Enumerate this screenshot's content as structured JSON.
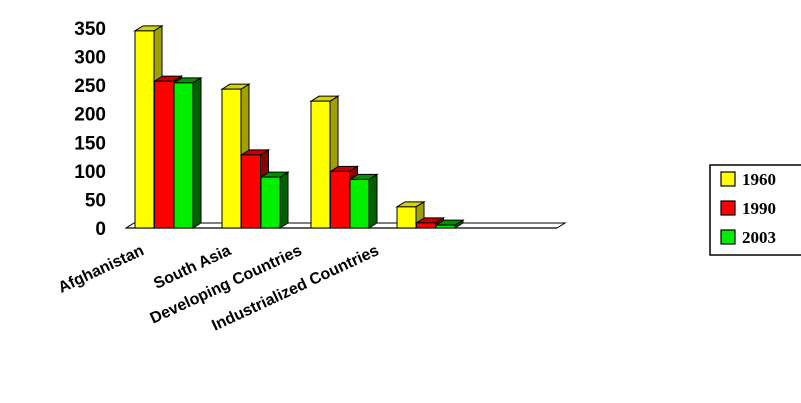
{
  "chart_data": {
    "type": "bar",
    "categories": [
      "Afghanistan",
      "South Asia",
      "Developing Countries",
      "Industrialized Countries"
    ],
    "series": [
      {
        "name": "1960",
        "values": [
          345,
          243,
          222,
          37
        ],
        "color": "#ffff00",
        "side": "#a0a000",
        "top": "#d4d400"
      },
      {
        "name": "1990",
        "values": [
          257,
          128,
          99,
          9
        ],
        "color": "#ff0000",
        "side": "#8c0000",
        "top": "#c40000"
      },
      {
        "name": "2003",
        "values": [
          254,
          89,
          85,
          5
        ],
        "color": "#00ee00",
        "side": "#006000",
        "top": "#009000"
      }
    ],
    "ylim": [
      0,
      350
    ],
    "yticks": [
      "0",
      "50",
      "100",
      "150",
      "200",
      "250",
      "300",
      "350"
    ],
    "legend_position": "right",
    "title": "",
    "xlabel": "",
    "ylabel": ""
  }
}
